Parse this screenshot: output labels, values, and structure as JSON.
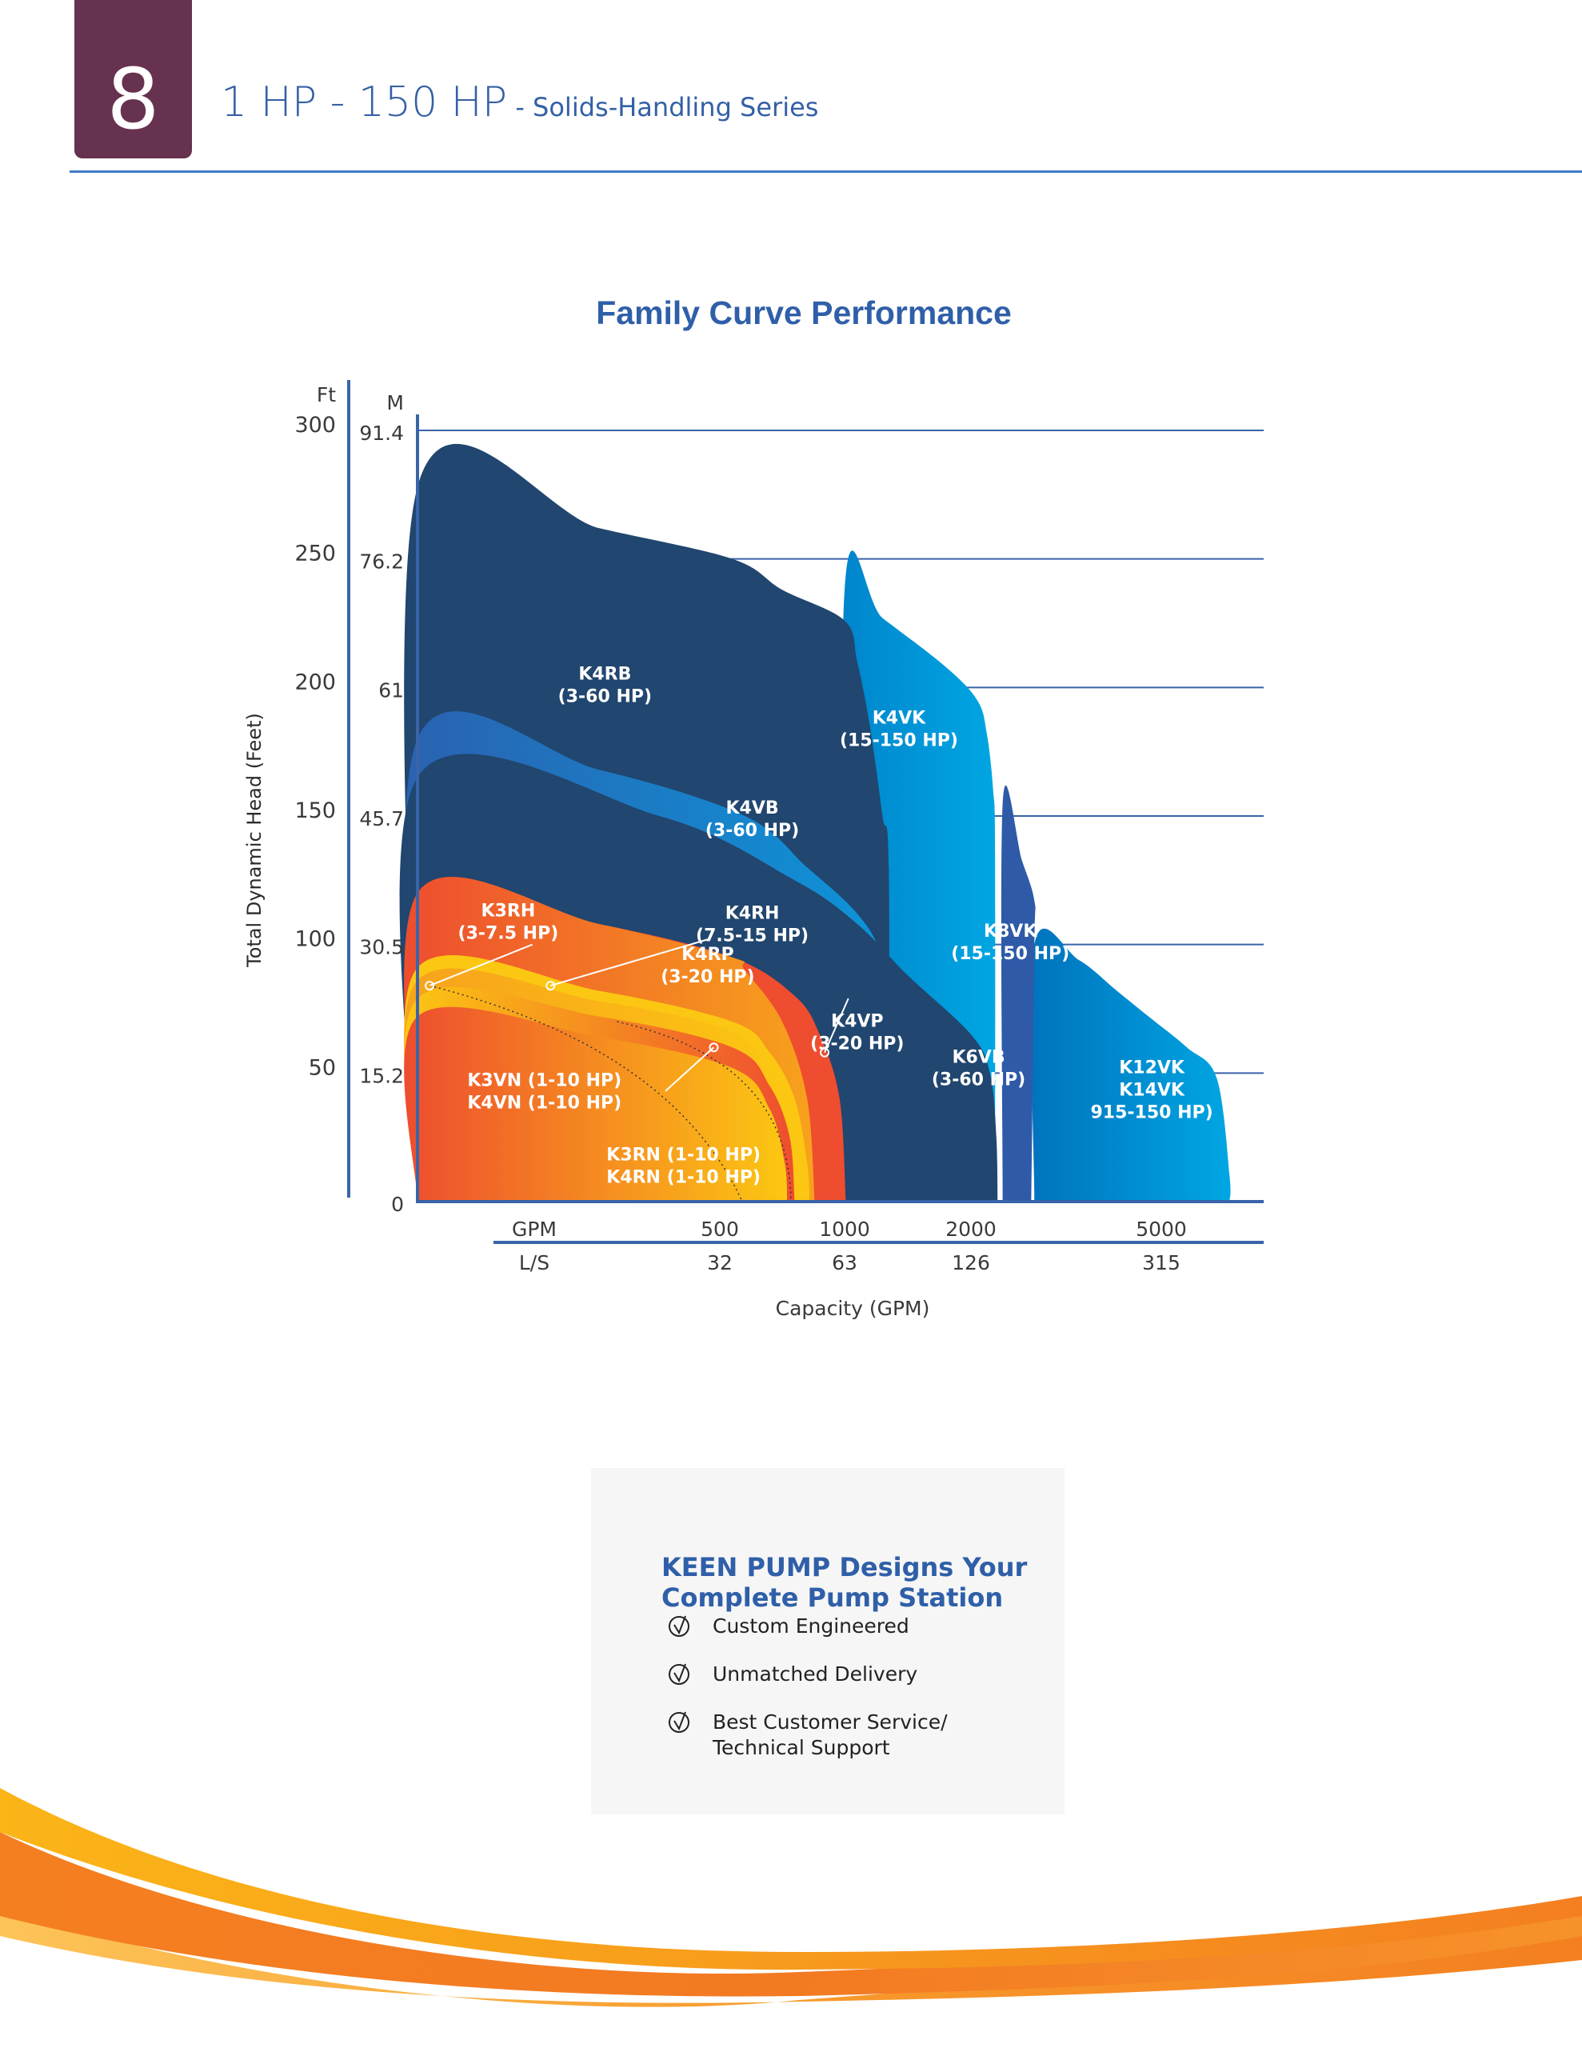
{
  "header": {
    "page_number": "8",
    "title_main": "1 HP - 150 HP",
    "title_sub": " - Solids-Handling Series"
  },
  "colors": {
    "badge": "#66324f",
    "title_blue": "#2f5fa8",
    "navy": "#21466f",
    "mid_blue": "#2e5aa8",
    "bright_blue": "#0a8fd6",
    "sky_blue": "#00a3e0",
    "orange_red": "#ee4d2f",
    "orange": "#f5892a",
    "yellow": "#fcc712",
    "swoosh_orange": "#f47f20",
    "swoosh_yellow": "#fbb517"
  },
  "chart_data": {
    "type": "area",
    "title": "Family Curve Performance",
    "xlabel": "Capacity (GPM)",
    "ylabel": "Total Dynamic Head (Feet)",
    "y_unit_primary": "Ft",
    "y_unit_secondary": "M",
    "yticks_ft": [
      "300",
      "250",
      "200",
      "150",
      "100",
      "50"
    ],
    "yticks_m": [
      "91.4",
      "76.2",
      "61",
      "45.7",
      "30.5",
      "15.2",
      "0"
    ],
    "ytick_values_ft": [
      300,
      250,
      200,
      150,
      100,
      50,
      0
    ],
    "ylim": [
      0,
      300
    ],
    "x_unit_primary": "GPM",
    "x_unit_secondary": "L/S",
    "xticks_gpm": [
      "500",
      "1000",
      "2000",
      "5000"
    ],
    "xticks_ls": [
      "32",
      "63",
      "126",
      "315"
    ],
    "xtick_values_gpm": [
      500,
      1000,
      2000,
      5000
    ],
    "x_scale": "non-linear (labeled ticks)",
    "gridlines_ft": [
      300,
      250,
      200,
      150,
      100,
      50
    ],
    "series": [
      {
        "name": "K12VK / K14VK",
        "hp": "915-150 HP",
        "color_from": "#0073be",
        "color_to": "#00a6e2",
        "outline": [
          [
            3000,
            0
          ],
          [
            3000,
            100
          ],
          [
            3700,
            94
          ],
          [
            4300,
            82
          ],
          [
            4800,
            72
          ],
          [
            5300,
            60
          ],
          [
            5650,
            48
          ],
          [
            5800,
            10
          ],
          [
            5800,
            0
          ]
        ]
      },
      {
        "name": "K8VK",
        "hp": "15-150 HP",
        "color_from": "#2e5aa8",
        "color_to": "#2e5aa8",
        "outline": [
          [
            2500,
            0
          ],
          [
            2500,
            155
          ],
          [
            2800,
            133
          ],
          [
            3000,
            117
          ],
          [
            3000,
            100
          ],
          [
            2950,
            0
          ]
        ]
      },
      {
        "name": "K4VK",
        "hp": "15-150 HP",
        "color_from": "#0085cc",
        "color_to": "#00a6e2",
        "outline": [
          [
            1000,
            0
          ],
          [
            1000,
            238
          ],
          [
            1300,
            227
          ],
          [
            1800,
            208
          ],
          [
            2100,
            195
          ],
          [
            2250,
            182
          ],
          [
            2350,
            160
          ],
          [
            2380,
            135
          ],
          [
            2380,
            0
          ]
        ]
      },
      {
        "name": "K4RB",
        "hp": "3-60 HP",
        "color_from": "#21466f",
        "color_to": "#21466f",
        "outline": [
          [
            0,
            0
          ],
          [
            0,
            278
          ],
          [
            300,
            262
          ],
          [
            550,
            250
          ],
          [
            750,
            238
          ],
          [
            1000,
            226
          ],
          [
            1100,
            210
          ],
          [
            1200,
            185
          ],
          [
            1300,
            150
          ],
          [
            1350,
            130
          ],
          [
            1350,
            0
          ]
        ]
      },
      {
        "name": "K4VB",
        "hp": "3-60 HP",
        "color_from": "#2a62b0",
        "color_to": "#0c96da",
        "outline": [
          [
            0,
            0
          ],
          [
            0,
            180
          ],
          [
            300,
            168
          ],
          [
            600,
            150
          ],
          [
            850,
            130
          ],
          [
            1100,
            112
          ],
          [
            1300,
            95
          ],
          [
            1500,
            60
          ],
          [
            1500,
            0
          ]
        ]
      },
      {
        "name": "K6VB",
        "hp": "3-60 HP",
        "color_from": "#21466f",
        "color_to": "#21466f",
        "outline": [
          [
            0,
            0
          ],
          [
            0,
            165
          ],
          [
            400,
            150
          ],
          [
            800,
            125
          ],
          [
            1100,
            108
          ],
          [
            1500,
            88
          ],
          [
            2000,
            65
          ],
          [
            2300,
            50
          ],
          [
            2400,
            25
          ],
          [
            2420,
            0
          ]
        ]
      },
      {
        "name": "K4VP",
        "hp": "3-20 HP",
        "color_from": "#ee4d2f",
        "color_to": "#ee4d2f",
        "outline": [
          [
            0,
            0
          ],
          [
            0,
            120
          ],
          [
            300,
            108
          ],
          [
            550,
            95
          ],
          [
            800,
            80
          ],
          [
            900,
            65
          ],
          [
            980,
            40
          ],
          [
            1010,
            0
          ]
        ]
      },
      {
        "name": "K3RH",
        "hp": "3-7.5 HP",
        "color_from": "#ee4d2f",
        "color_to": "#f7a21c",
        "outline": [
          [
            0,
            0
          ],
          [
            0,
            120
          ],
          [
            300,
            108
          ],
          [
            550,
            95
          ],
          [
            600,
            90
          ],
          [
            750,
            70
          ],
          [
            850,
            40
          ],
          [
            880,
            0
          ]
        ]
      },
      {
        "name": "K4RH",
        "hp": "7.5-15 HP",
        "color_from": "#fcc712",
        "color_to": "#fcc712",
        "outline": [
          [
            0,
            0
          ],
          [
            0,
            91
          ],
          [
            300,
            82
          ],
          [
            550,
            70
          ],
          [
            700,
            58
          ],
          [
            800,
            40
          ],
          [
            850,
            15
          ],
          [
            860,
            0
          ]
        ]
      },
      {
        "name": "K4RP",
        "hp": "3-20 HP",
        "color_from": "#f7a21c",
        "color_to": "#fcc712",
        "outline": [
          [
            0,
            0
          ],
          [
            0,
            86
          ],
          [
            300,
            78
          ],
          [
            500,
            68
          ],
          [
            650,
            58
          ],
          [
            750,
            40
          ],
          [
            800,
            15
          ],
          [
            810,
            0
          ]
        ]
      },
      {
        "name": "K3VN / K4VN",
        "hp": "1-10 HP",
        "color_from": "#fcc712",
        "color_to": "#ee4d2f",
        "outline": [
          [
            0,
            0
          ],
          [
            0,
            79
          ],
          [
            300,
            72
          ],
          [
            550,
            60
          ],
          [
            700,
            45
          ],
          [
            780,
            25
          ],
          [
            800,
            0
          ]
        ]
      },
      {
        "name": "K3RN / K4RN",
        "hp": "1-10 HP",
        "color_from": "#ee4d2f",
        "color_to": "#fcc712",
        "outline": [
          [
            0,
            0
          ],
          [
            0,
            72
          ],
          [
            300,
            64
          ],
          [
            550,
            52
          ],
          [
            700,
            36
          ],
          [
            760,
            15
          ],
          [
            770,
            0
          ]
        ]
      }
    ],
    "labels": [
      {
        "id": "k4rb",
        "lines": [
          "K4RB",
          "(3-60 HP)"
        ],
        "at": [
          310,
          203
        ]
      },
      {
        "id": "k4vk",
        "lines": [
          "K4VK",
          "(15-150 HP)"
        ],
        "at": [
          1430,
          186
        ]
      },
      {
        "id": "k4vb",
        "lines": [
          "K4VB",
          "(3-60 HP)"
        ],
        "at": [
          630,
          151
        ]
      },
      {
        "id": "k3rh",
        "lines": [
          "K3RH",
          "(3-7.5 HP)"
        ],
        "at": [
          150,
          111
        ]
      },
      {
        "id": "k4rh",
        "lines": [
          "K4RH",
          "(7.5-15 HP)"
        ],
        "at": [
          630,
          110
        ]
      },
      {
        "id": "k8vk",
        "lines": [
          "K8VK",
          "(15-150 HP)"
        ],
        "at": [
          2620,
          103
        ]
      },
      {
        "id": "k4rp",
        "lines": [
          "K4RP",
          "(3-20 HP)"
        ],
        "at": [
          480,
          94
        ]
      },
      {
        "id": "k4vp",
        "lines": [
          "K4VP",
          "(3-20 HP)"
        ],
        "at": [
          1100,
          68
        ]
      },
      {
        "id": "k6vb",
        "lines": [
          "K6VB",
          "(3-60 HP)"
        ],
        "at": [
          2120,
          54
        ]
      },
      {
        "id": "k12vk",
        "lines": [
          "K12VK",
          "K14VK",
          "915-150 HP)"
        ],
        "at": [
          4850,
          50
        ]
      },
      {
        "id": "k3vn",
        "lines": [
          "K3VN (1-10 HP)",
          "K4VN (1-10 HP)"
        ],
        "at": [
          210,
          45
        ]
      },
      {
        "id": "k3rn",
        "lines": [
          "K3RN (1-10 HP)",
          "K4RN (1-10 HP)"
        ],
        "at": [
          440,
          16
        ]
      }
    ],
    "callouts": [
      {
        "from": [
          20,
          84
        ],
        "to": [
          190,
          100
        ]
      },
      {
        "from": [
          220,
          84
        ],
        "to": [
          480,
          102
        ]
      },
      {
        "from": [
          490,
          60
        ],
        "to": [
          410,
          43
        ]
      },
      {
        "from": [
          920,
          58
        ],
        "to": [
          1030,
          79
        ]
      }
    ],
    "grid": true,
    "legend": "none (inline labels)"
  },
  "info_box": {
    "title_line1": "KEEN PUMP Designs Your",
    "title_line2": "Complete Pump Station",
    "items": [
      {
        "icon": "check-circle-icon",
        "label": "Custom Engineered"
      },
      {
        "icon": "check-circle-icon",
        "label": "Unmatched Delivery"
      },
      {
        "icon": "check-circle-icon",
        "label": "Best Customer Service/\nTechnical Support"
      }
    ]
  }
}
